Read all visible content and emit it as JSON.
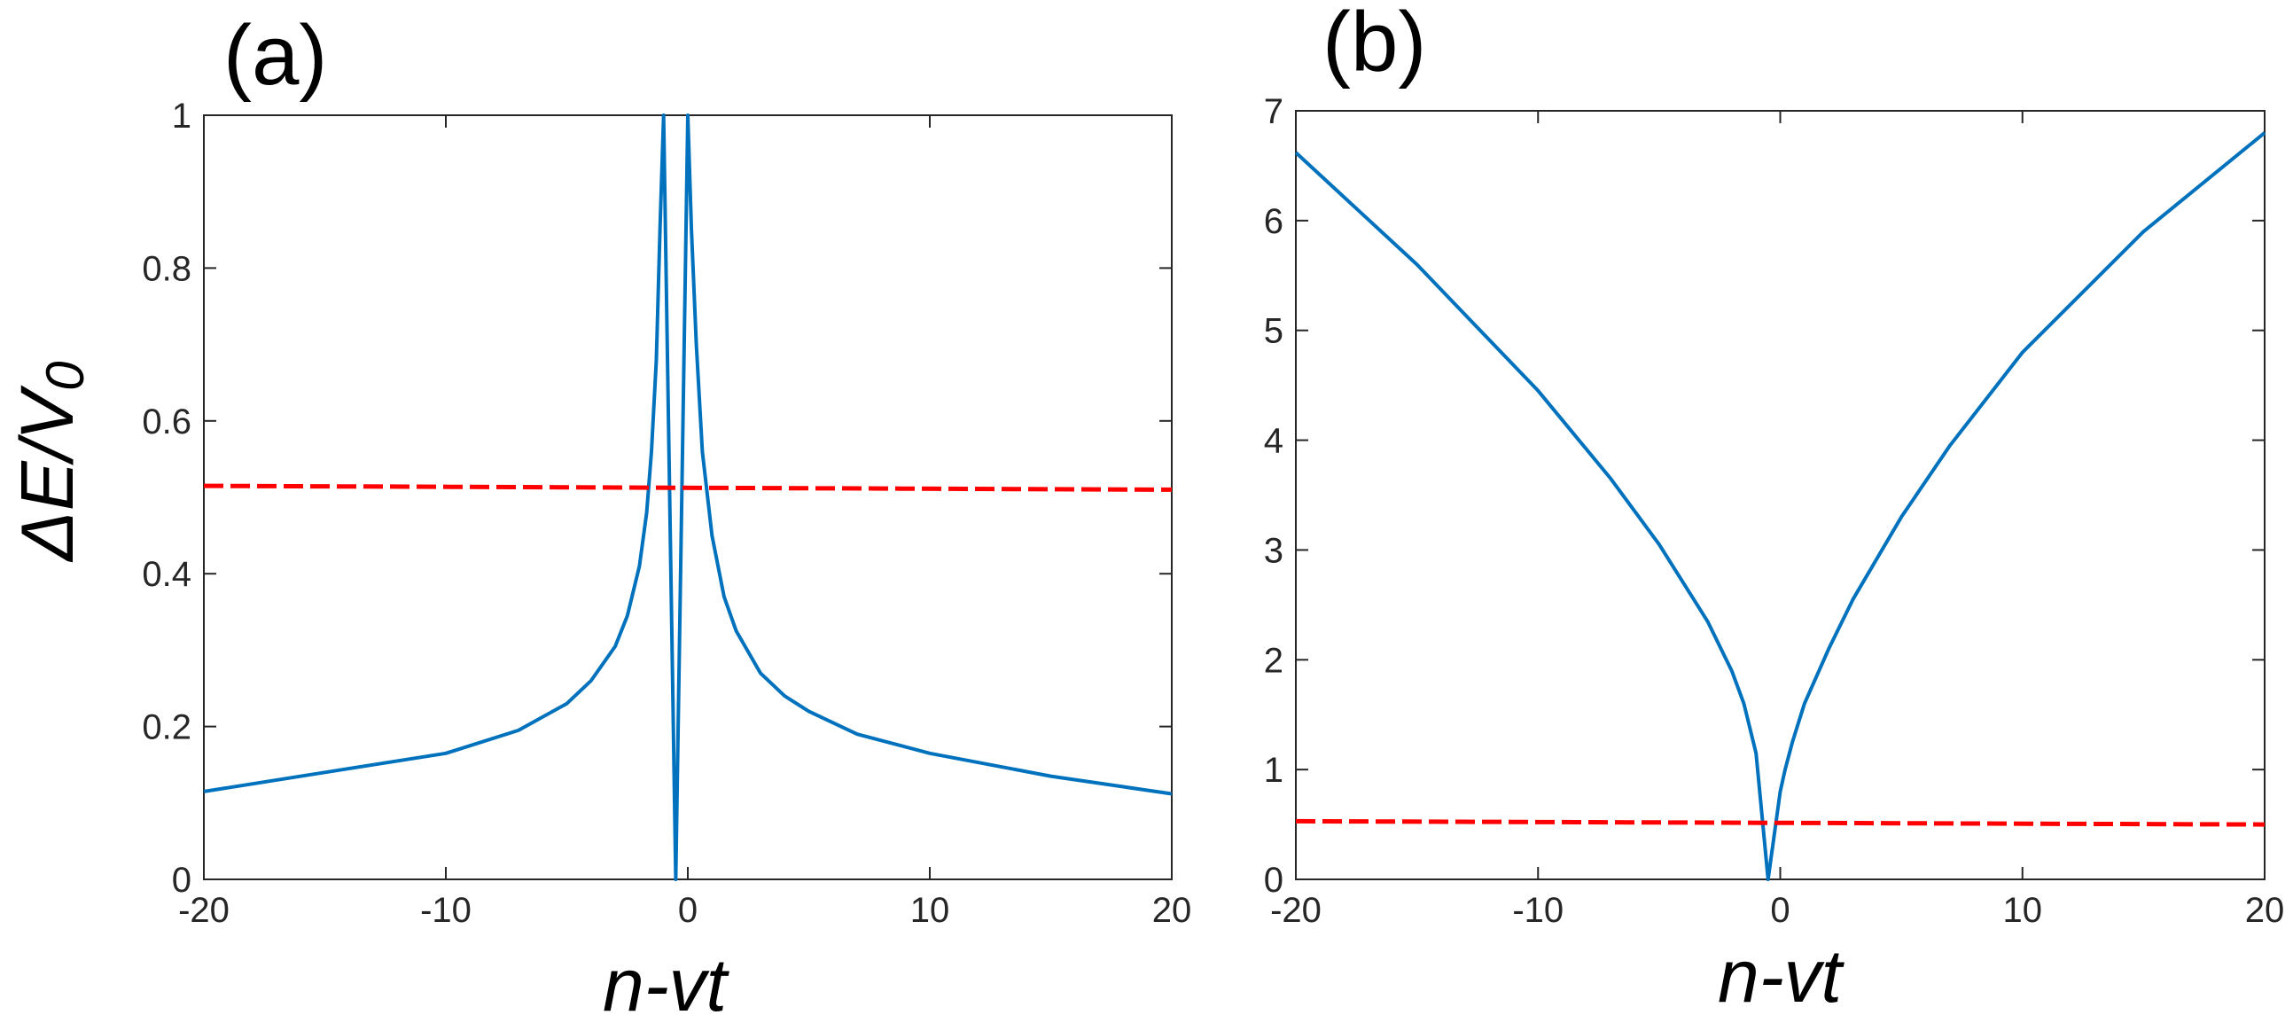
{
  "chart_data": [
    {
      "type": "line",
      "panel_label": "(a)",
      "xlabel": "n-vt",
      "ylabel": "ΔE/V",
      "ylabel_subscript": "0",
      "xlim": [
        -20,
        20
      ],
      "ylim": [
        0,
        1
      ],
      "xticks": [
        "-20",
        "-10",
        "0",
        "10",
        "20"
      ],
      "yticks": [
        "0",
        "0.2",
        "0.4",
        "0.6",
        "0.8",
        "1"
      ],
      "grid": false,
      "series": [
        {
          "style": "solid",
          "color": "#0072BD",
          "points": [
            [
              -20,
              0.115
            ],
            [
              -15,
              0.14
            ],
            [
              -10,
              0.165
            ],
            [
              -7,
              0.195
            ],
            [
              -5,
              0.23
            ],
            [
              -4,
              0.26
            ],
            [
              -3,
              0.305
            ],
            [
              -2.5,
              0.345
            ],
            [
              -2,
              0.41
            ],
            [
              -1.7,
              0.48
            ],
            [
              -1.5,
              0.56
            ],
            [
              -1.3,
              0.68
            ],
            [
              -1.15,
              0.85
            ],
            [
              -1.0,
              1.0
            ],
            [
              -0.5,
              0.0
            ],
            [
              0.0,
              1.0
            ],
            [
              0.15,
              0.85
            ],
            [
              0.35,
              0.7
            ],
            [
              0.6,
              0.56
            ],
            [
              1.0,
              0.45
            ],
            [
              1.5,
              0.37
            ],
            [
              2,
              0.325
            ],
            [
              3,
              0.27
            ],
            [
              4,
              0.24
            ],
            [
              5,
              0.22
            ],
            [
              7,
              0.19
            ],
            [
              10,
              0.165
            ],
            [
              15,
              0.135
            ],
            [
              20,
              0.112
            ]
          ]
        },
        {
          "style": "dashed",
          "color": "#FF0000",
          "points": [
            [
              -20,
              0.515
            ],
            [
              20,
              0.51
            ]
          ]
        }
      ]
    },
    {
      "type": "line",
      "panel_label": "(b)",
      "xlabel": "n-vt",
      "xlim": [
        -20,
        20
      ],
      "ylim": [
        0,
        7
      ],
      "xticks": [
        "-20",
        "-10",
        "0",
        "10",
        "20"
      ],
      "yticks": [
        "0",
        "1",
        "2",
        "3",
        "4",
        "5",
        "6",
        "7"
      ],
      "grid": false,
      "series": [
        {
          "style": "solid",
          "color": "#0072BD",
          "points": [
            [
              -20,
              6.62
            ],
            [
              -15,
              5.6
            ],
            [
              -10,
              4.45
            ],
            [
              -7,
              3.65
            ],
            [
              -5,
              3.05
            ],
            [
              -3,
              2.35
            ],
            [
              -2,
              1.9
            ],
            [
              -1.5,
              1.6
            ],
            [
              -1.0,
              1.15
            ],
            [
              -0.5,
              0.0
            ],
            [
              0.0,
              0.8
            ],
            [
              0.2,
              1.0
            ],
            [
              0.5,
              1.25
            ],
            [
              1,
              1.6
            ],
            [
              2,
              2.1
            ],
            [
              3,
              2.55
            ],
            [
              5,
              3.3
            ],
            [
              7,
              3.95
            ],
            [
              10,
              4.8
            ],
            [
              15,
              5.9
            ],
            [
              20,
              6.8
            ]
          ]
        },
        {
          "style": "dashed",
          "color": "#FF0000",
          "points": [
            [
              -20,
              0.53
            ],
            [
              20,
              0.5
            ]
          ]
        }
      ]
    }
  ]
}
